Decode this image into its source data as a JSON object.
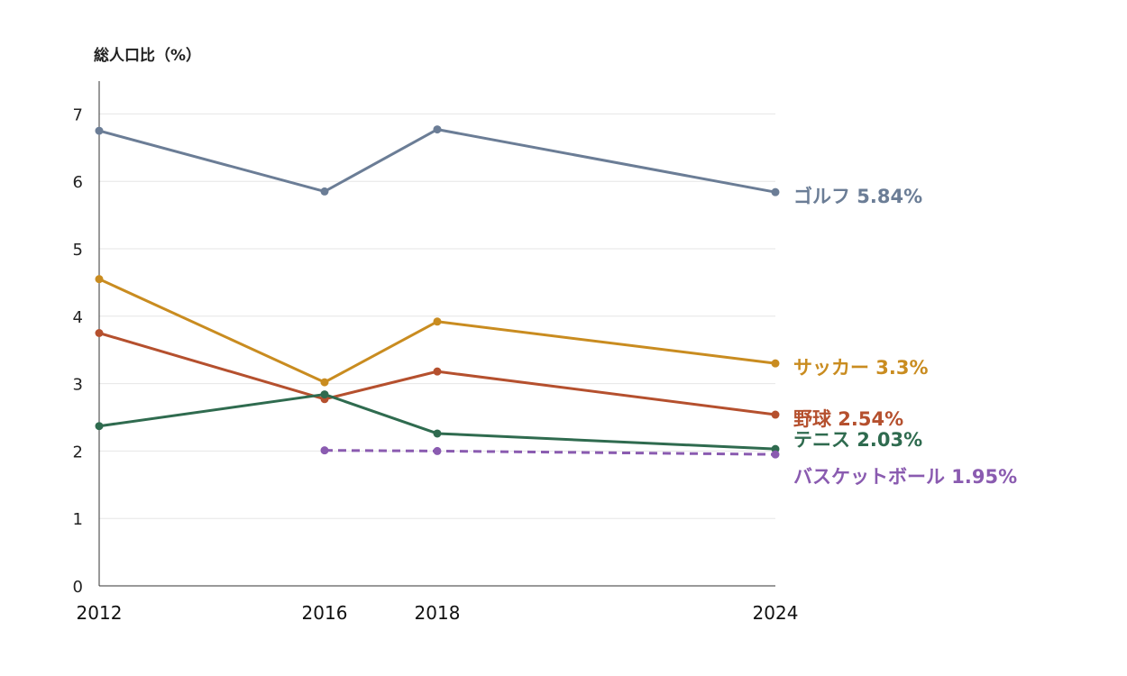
{
  "chart_data": {
    "type": "line",
    "ylabel": "総人口比（%）",
    "xlabel": "",
    "x": [
      2012,
      2016,
      2018,
      2024
    ],
    "y_ticks": [
      "0",
      "1",
      "2",
      "3",
      "4",
      "5",
      "6",
      "7"
    ],
    "x_ticks": [
      "2012",
      "2016",
      "2018",
      "2024"
    ],
    "ylim": [
      0,
      7.5
    ],
    "grid": true,
    "series": [
      {
        "name": "ゴルフ",
        "end_label": "ゴルフ 5.84%",
        "color": "#6b7d96",
        "dashed": false,
        "x": [
          2012,
          2016,
          2018,
          2024
        ],
        "values": [
          6.75,
          5.85,
          6.77,
          5.84
        ]
      },
      {
        "name": "サッカー",
        "end_label": "サッカー 3.3%",
        "color": "#c98c20",
        "dashed": false,
        "x": [
          2012,
          2016,
          2018,
          2024
        ],
        "values": [
          4.55,
          3.02,
          3.92,
          3.3
        ]
      },
      {
        "name": "野球",
        "end_label": "野球 2.54%",
        "color": "#b5502e",
        "dashed": false,
        "x": [
          2012,
          2016,
          2018,
          2024
        ],
        "values": [
          3.75,
          2.77,
          3.18,
          2.54
        ]
      },
      {
        "name": "テニス",
        "end_label": "テニス 2.03%",
        "color": "#2f6b4f",
        "dashed": false,
        "x": [
          2012,
          2016,
          2018,
          2024
        ],
        "values": [
          2.37,
          2.84,
          2.26,
          2.03
        ]
      },
      {
        "name": "バスケットボール",
        "end_label": "バスケットボール 1.95%",
        "color": "#8a5bb0",
        "dashed": true,
        "x": [
          2016,
          2018,
          2024
        ],
        "values": [
          2.01,
          2.0,
          1.95
        ]
      }
    ]
  }
}
